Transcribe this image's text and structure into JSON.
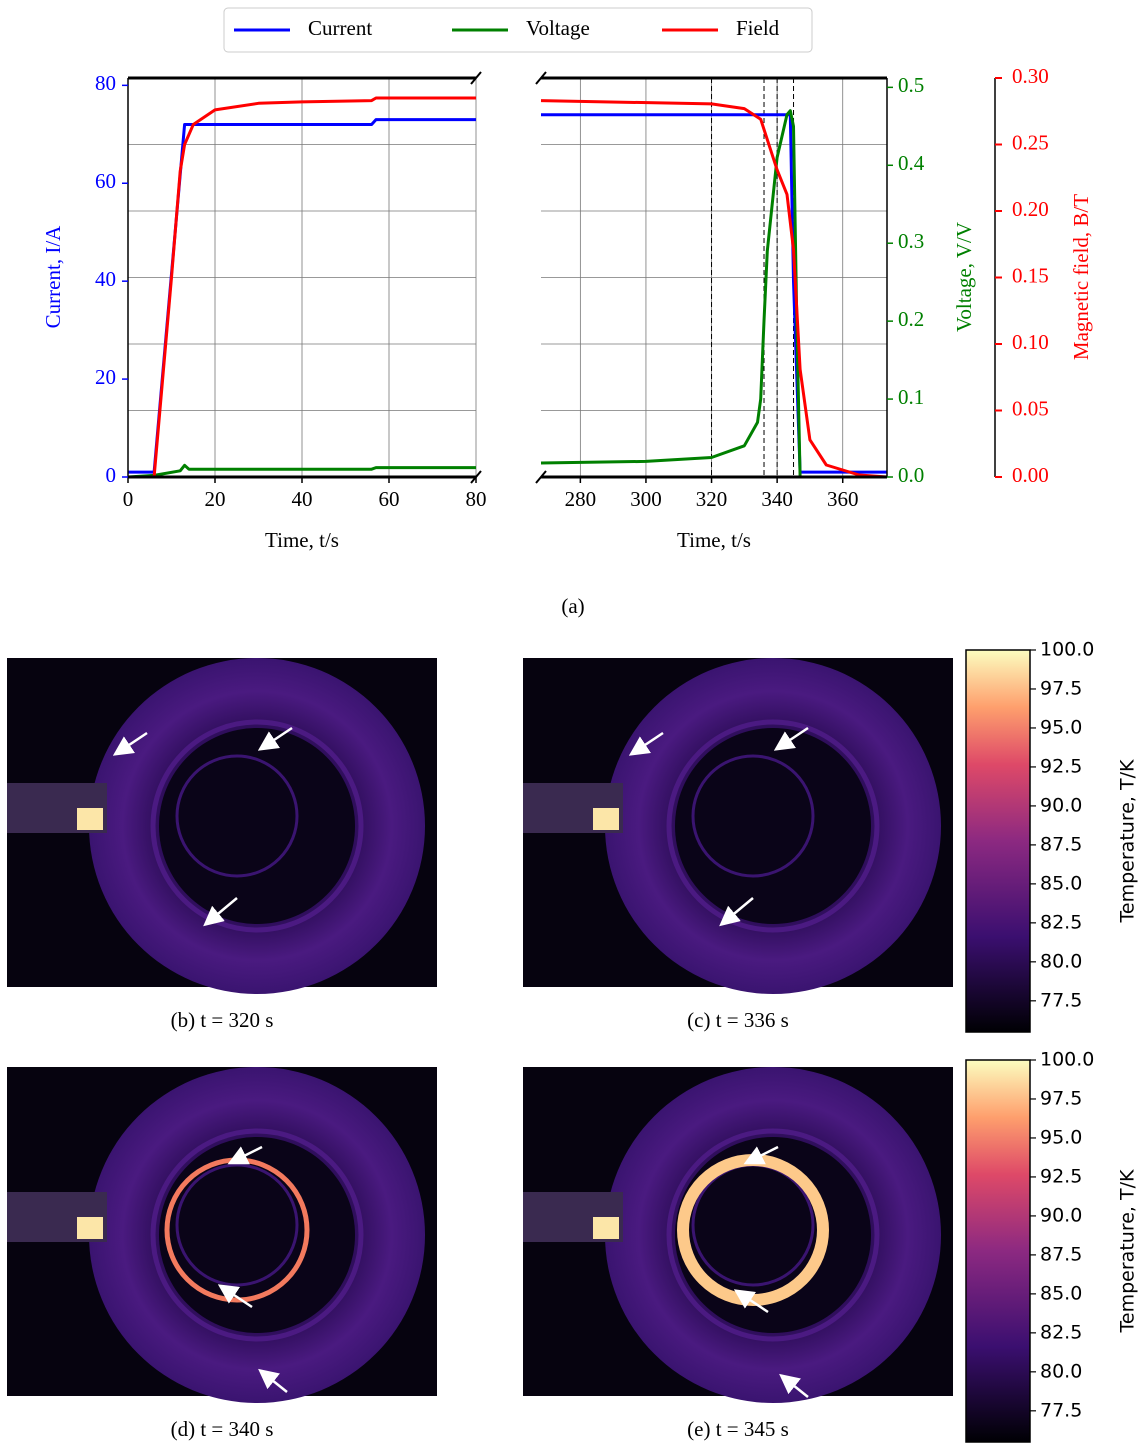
{
  "caption": "(a)",
  "chart_data": [
    {
      "type": "line",
      "x_label": "Time, t/s",
      "y_label": "Current, I/A",
      "xlim": [
        0,
        80
      ],
      "xticks": [
        0,
        20,
        40,
        60,
        80
      ],
      "ylim": [
        0,
        81.5
      ],
      "yticks": [
        0,
        20,
        40,
        60,
        80
      ],
      "y2lim": [
        0,
        0.512
      ],
      "y3lim": [
        0,
        0.3
      ],
      "grid": true,
      "series": [
        {
          "name": "Current",
          "color": "#0000ff",
          "x": [
            0,
            6,
            13,
            56,
            57,
            80
          ],
          "values": [
            1,
            1,
            72,
            72,
            73,
            73
          ]
        },
        {
          "name": "Voltage",
          "color": "#008000",
          "axis": "y2",
          "x": [
            0,
            6,
            12,
            13,
            14,
            56,
            57,
            80
          ],
          "values": [
            0,
            0.002,
            0.008,
            0.015,
            0.01,
            0.01,
            0.012,
            0.012
          ]
        },
        {
          "name": "Field",
          "color": "#ff0000",
          "axis": "y3",
          "x": [
            0,
            6,
            10,
            12,
            13,
            15,
            20,
            30,
            40,
            56,
            57,
            80
          ],
          "values": [
            0,
            0,
            0.15,
            0.23,
            0.25,
            0.265,
            0.276,
            0.281,
            0.282,
            0.283,
            0.285,
            0.285
          ]
        }
      ]
    },
    {
      "type": "line",
      "x_label": "Time, t/s",
      "y2_label": "Voltage, V/V",
      "y3_label": "Magnetic field, B/T",
      "xlim": [
        268,
        373.5
      ],
      "xticks": [
        280,
        300,
        320,
        340,
        360
      ],
      "ylim": [
        0,
        81.5
      ],
      "y2lim": [
        0,
        0.512
      ],
      "y2ticks": [
        {
          "value": 0,
          "label": "0.0"
        },
        0.1,
        0.2,
        0.3,
        0.4,
        0.5
      ],
      "y3lim": [
        0,
        0.3
      ],
      "y3ticks": [
        {
          "value": 0,
          "label": "0.00"
        },
        0.05,
        {
          "value": 0.1,
          "label": "0.10"
        },
        0.15,
        {
          "value": 0.2,
          "label": "0.20"
        },
        0.25,
        {
          "value": 0.3,
          "label": "0.30"
        }
      ],
      "grid": true,
      "markers": [
        320,
        336,
        340,
        345
      ],
      "series": [
        {
          "name": "Current",
          "color": "#0000ff",
          "x": [
            268,
            344,
            345,
            347,
            360,
            373.5
          ],
          "values": [
            74,
            74,
            40,
            1,
            1,
            1
          ]
        },
        {
          "name": "Voltage",
          "color": "#008000",
          "axis": "y2",
          "x": [
            268,
            300,
            320,
            330,
            334,
            335,
            336,
            337,
            340,
            343,
            344,
            345,
            346,
            347,
            373.5
          ],
          "values": [
            0.018,
            0.02,
            0.025,
            0.04,
            0.07,
            0.1,
            0.2,
            0.29,
            0.41,
            0.465,
            0.47,
            0.45,
            0.2,
            0,
            0
          ]
        },
        {
          "name": "Field",
          "color": "#ff0000",
          "axis": "y3",
          "x": [
            268,
            320,
            330,
            335,
            338,
            340,
            343,
            345,
            347,
            350,
            355,
            365,
            373.5
          ],
          "values": [
            0.283,
            0.2805,
            0.277,
            0.269,
            0.246,
            0.231,
            0.2125,
            0.171,
            0.081,
            0.028,
            0.009,
            0.0015,
            0
          ]
        }
      ]
    }
  ],
  "panels": [
    {
      "caption": "(b) t = 320 s"
    },
    {
      "caption": "(c) t = 336 s"
    },
    {
      "caption": "(d) t = 340 s"
    },
    {
      "caption": "(e) t = 345 s"
    }
  ],
  "colorbars": [
    {
      "label": "Temperature, T/K",
      "lim": [
        75.5,
        100
      ],
      "ticks": [
        {
          "value": 100,
          "label": "100.0"
        },
        97.5,
        {
          "value": 95,
          "label": "95.0"
        },
        92.5,
        {
          "value": 90,
          "label": "90.0"
        },
        87.5,
        {
          "value": 85,
          "label": "85.0"
        },
        82.5,
        {
          "value": 80,
          "label": "80.0"
        },
        77.5
      ]
    },
    {
      "label": "Temperature, T/K",
      "lim": [
        75.5,
        100
      ],
      "ticks": [
        {
          "value": 100,
          "label": "100.0"
        },
        97.5,
        {
          "value": 95,
          "label": "95.0"
        },
        92.5,
        {
          "value": 90,
          "label": "90.0"
        },
        87.5,
        {
          "value": 85,
          "label": "85.0"
        },
        82.5,
        {
          "value": 80,
          "label": "80.0"
        },
        77.5
      ]
    }
  ]
}
